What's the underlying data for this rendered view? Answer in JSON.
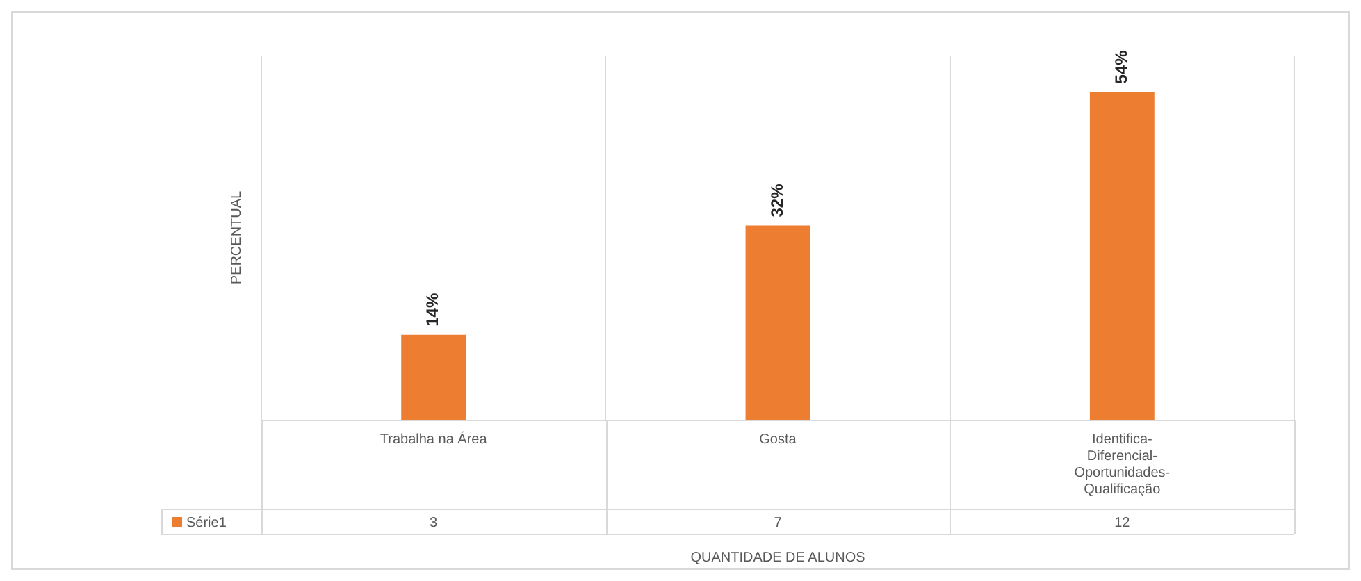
{
  "chart_data": {
    "type": "bar",
    "ylabel": "PERCENTUAL",
    "xlabel": "QUANTIDADE DE ALUNOS",
    "categories": [
      "Trabalha na Área",
      "Gosta",
      "Identifica-Diferencial-Oportunidades-Qualificação"
    ],
    "series": [
      {
        "name": "Série1",
        "color": "#ed7d31",
        "values": [
          14,
          32,
          54
        ],
        "value_labels": [
          "14%",
          "32%",
          "54%"
        ]
      }
    ],
    "ylim": [
      0,
      60
    ],
    "grid": "x",
    "legend": "bottom",
    "tick_labels": "x",
    "annotations": [
      "3",
      "7",
      "12"
    ]
  }
}
